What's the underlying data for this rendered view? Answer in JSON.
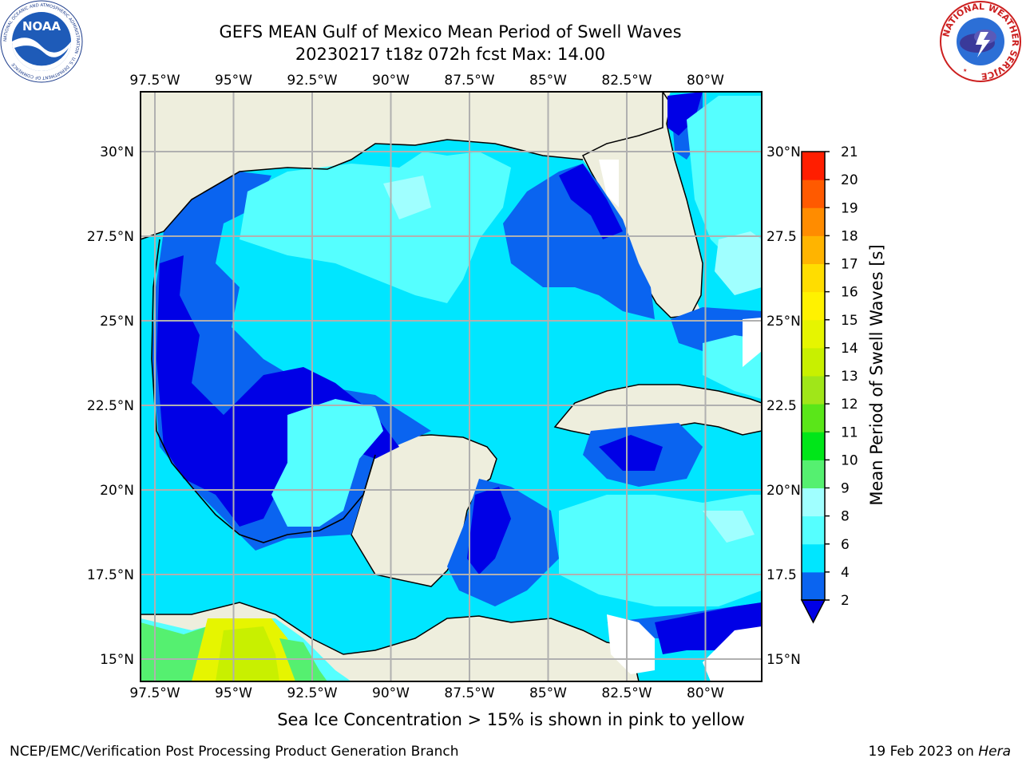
{
  "header": {
    "title_line1": "GEFS MEAN Gulf of Mexico Mean Period of Swell Waves",
    "title_line2": "20230217 t18z 072h fcst   Max: 14.00"
  },
  "logos": {
    "left": {
      "icon": "noaa-logo",
      "text": "NOAA",
      "ring_text": "NATIONAL OCEANIC AND ATMOSPHERIC ADMINISTRATION · U.S. DEPARTMENT OF COMMERCE"
    },
    "right": {
      "icon": "nws-logo",
      "ring_text": "NATIONAL WEATHER SERVICE"
    }
  },
  "map": {
    "lon_ticks_top": [
      "97.5°W",
      "95°W",
      "92.5°W",
      "90°W",
      "87.5°W",
      "85°W",
      "82.5°W",
      "80°W"
    ],
    "lon_ticks_bottom": [
      "97.5°W",
      "95°W",
      "92.5°W",
      "90°W",
      "87.5°W",
      "85°W",
      "82.5°W",
      "80°W"
    ],
    "lat_ticks_left": [
      "30°N",
      "27.5°N",
      "25°N",
      "22.5°N",
      "20°N",
      "17.5°N",
      "15°N"
    ],
    "lat_ticks_right": [
      "30°N",
      "27.5",
      "25°N",
      "22.5",
      "20°N",
      "17.5",
      "15°N"
    ],
    "colors": {
      "land": "#eeeedd",
      "grid": "#b0b0b0"
    }
  },
  "colorbar": {
    "label": "Mean Period of Swell Waves [s]",
    "ticks": [
      "2",
      "4",
      "6",
      "8",
      "9",
      "10",
      "11",
      "12",
      "13",
      "14",
      "15",
      "16",
      "17",
      "18",
      "19",
      "20",
      "21"
    ],
    "colors": [
      "#0a64f0",
      "#00e6ff",
      "#55ffff",
      "#a0ffff",
      "#55f070",
      "#00e619",
      "#5ae619",
      "#a0e619",
      "#c8f000",
      "#e6f500",
      "#fff200",
      "#ffdd00",
      "#ffb400",
      "#ff8c00",
      "#ff5a00",
      "#ff1e00"
    ],
    "under_color": "#0000e6"
  },
  "footer": {
    "note": "Sea Ice Concentration > 15% is shown in pink to yellow",
    "credit": "NCEP/EMC/Verification Post Processing Product Generation Branch",
    "date": "19 Feb 2023 on",
    "host": "Hera"
  }
}
